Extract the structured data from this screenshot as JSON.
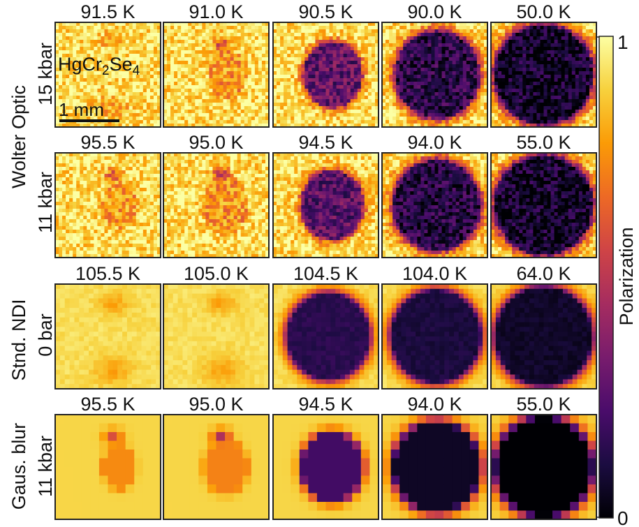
{
  "colormap": {
    "name": "inferno",
    "stops": [
      "#000004",
      "#1b0c41",
      "#4a0c6b",
      "#781c6d",
      "#a52c60",
      "#cf4446",
      "#ed6925",
      "#fb9b06",
      "#f7d13d",
      "#fcffa4"
    ],
    "label": "Polarization",
    "max_label": "1",
    "min_label": "0"
  },
  "sample_label": {
    "base": "HgCr",
    "sub1": "2",
    "mid": "Se",
    "sub2": "4"
  },
  "scale_bar_label": "1 mm",
  "group_labels": [
    {
      "line1": "Wolter Optic",
      "line2": ""
    },
    {
      "line1": "Stnd. NDI",
      "line2": ""
    },
    {
      "line1": "Gaus. blur",
      "line2": ""
    }
  ],
  "rows": [
    {
      "id": "wolter-15kbar",
      "pressure_label": "15 kbar",
      "style": "noisy",
      "temperatures": [
        "91.5 K",
        "91.0 K",
        "90.5 K",
        "90.0 K",
        "50.0 K"
      ],
      "dark_fraction": [
        0.0,
        0.15,
        0.45,
        0.8,
        1.0
      ]
    },
    {
      "id": "wolter-11kbar",
      "pressure_label": "11 kbar",
      "style": "noisy",
      "temperatures": [
        "95.5 K",
        "95.0 K",
        "94.5 K",
        "94.0 K",
        "55.0 K"
      ],
      "dark_fraction": [
        0.1,
        0.25,
        0.5,
        0.85,
        1.0
      ]
    },
    {
      "id": "ndi-0bar",
      "pressure_label": "0 bar",
      "style": "pixelated",
      "temperatures": [
        "105.5 K",
        "105.0 K",
        "104.5 K",
        "104.0 K",
        "64.0 K"
      ],
      "dark_fraction": [
        0.0,
        0.0,
        0.8,
        0.9,
        1.0
      ]
    },
    {
      "id": "gaus-11kbar",
      "pressure_label": "11 kbar",
      "style": "smooth",
      "temperatures": [
        "95.5 K",
        "95.0 K",
        "94.5 K",
        "94.0 K",
        "55.0 K"
      ],
      "dark_fraction": [
        0.1,
        0.25,
        0.5,
        0.85,
        1.0
      ]
    }
  ]
}
